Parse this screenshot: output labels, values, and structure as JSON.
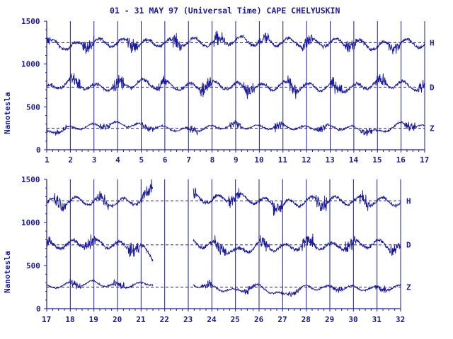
{
  "title": "01 - 31 MAY 97 (Universal Time) CAPE CHELYUSKIN",
  "ylabel": "Nanotesla",
  "colors": {
    "ink": "#1a1aa0",
    "background": "#ffffff"
  },
  "chart_data": [
    {
      "type": "line",
      "panel": "top",
      "xlim": [
        1,
        17
      ],
      "ylim": [
        0,
        1500
      ],
      "x_ticks": [
        "1",
        "2",
        "3",
        "4",
        "5",
        "6",
        "7",
        "8",
        "9",
        "10",
        "11",
        "12",
        "13",
        "14",
        "15",
        "16",
        "17"
      ],
      "y_ticks": [
        "0",
        "500",
        "1000",
        "1500"
      ],
      "grid": "vertical lines at each day, dashed baselines per component",
      "series": [
        {
          "name": "H",
          "baseline": 1250,
          "x": [
            1,
            2,
            3,
            4,
            5,
            6,
            7,
            8,
            9,
            10,
            11,
            12,
            13,
            14,
            15,
            16,
            17
          ],
          "values": [
            1250,
            1200,
            1250,
            1250,
            1240,
            1250,
            1260,
            1250,
            1280,
            1250,
            1260,
            1250,
            1250,
            1250,
            1200,
            1250,
            1230
          ]
        },
        {
          "name": "D",
          "baseline": 730,
          "x": [
            1,
            2,
            3,
            4,
            5,
            6,
            7,
            8,
            9,
            10,
            11,
            12,
            13,
            14,
            15,
            16,
            17
          ],
          "values": [
            700,
            800,
            720,
            750,
            780,
            750,
            730,
            760,
            740,
            720,
            750,
            730,
            730,
            720,
            780,
            760,
            720
          ]
        },
        {
          "name": "Z",
          "baseline": 250,
          "x": [
            1,
            2,
            3,
            4,
            5,
            6,
            7,
            8,
            9,
            10,
            11,
            12,
            13,
            14,
            15,
            16,
            17
          ],
          "values": [
            200,
            250,
            280,
            300,
            280,
            250,
            230,
            260,
            280,
            260,
            270,
            250,
            260,
            250,
            200,
            300,
            260
          ]
        }
      ]
    },
    {
      "type": "line",
      "panel": "bottom",
      "xlim": [
        17,
        32
      ],
      "ylim": [
        0,
        1500
      ],
      "x_ticks": [
        "17",
        "18",
        "19",
        "20",
        "21",
        "22",
        "23",
        "24",
        "25",
        "26",
        "27",
        "28",
        "29",
        "30",
        "31",
        "32"
      ],
      "y_ticks": [
        "0",
        "500",
        "1000",
        "1500"
      ],
      "grid": "vertical lines at each day, dashed baselines per component",
      "data_gap": [
        21.5,
        23.2
      ],
      "series": [
        {
          "name": "H",
          "baseline": 1250,
          "x": [
            17,
            18,
            19,
            20,
            21,
            21.5,
            23.2,
            24,
            25,
            26,
            27,
            28,
            29,
            30,
            31,
            32
          ],
          "values": [
            1230,
            1250,
            1250,
            1230,
            1260,
            1400,
            1290,
            1260,
            1300,
            1250,
            1200,
            1250,
            1260,
            1250,
            1250,
            1230
          ]
        },
        {
          "name": "D",
          "baseline": 740,
          "x": [
            17,
            18,
            19,
            20,
            21,
            21.5,
            23.2,
            24,
            25,
            26,
            27,
            28,
            29,
            30,
            31,
            32
          ],
          "values": [
            720,
            750,
            760,
            740,
            700,
            600,
            760,
            740,
            650,
            740,
            700,
            750,
            720,
            740,
            760,
            700
          ]
        },
        {
          "name": "Z",
          "baseline": 250,
          "x": [
            17,
            18,
            19,
            20,
            21,
            21.5,
            23.2,
            24,
            25,
            26,
            27,
            28,
            29,
            30,
            31,
            32
          ],
          "values": [
            250,
            280,
            300,
            260,
            280,
            300,
            280,
            250,
            200,
            260,
            150,
            250,
            240,
            240,
            230,
            250
          ]
        }
      ]
    }
  ]
}
